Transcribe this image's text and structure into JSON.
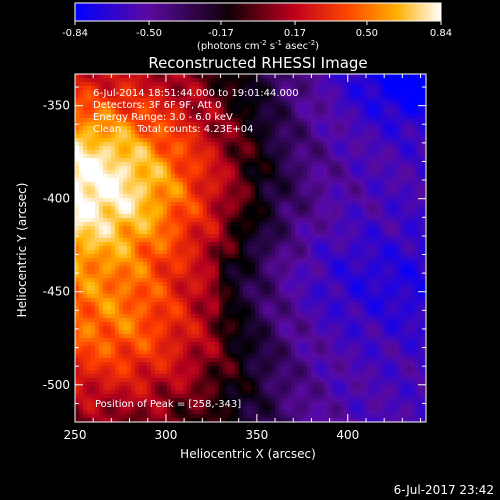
{
  "colorbar": {
    "ticks": [
      "-0.84",
      "-0.50",
      "-0.17",
      "0.17",
      "0.50",
      "0.84"
    ],
    "label_main": "(photons cm",
    "label_sup1": "-2",
    "label_mid1": " s",
    "label_sup2": "-1",
    "label_mid2": " asec",
    "label_sup3": "-2",
    "label_end": ")"
  },
  "chart_data": {
    "type": "heatmap",
    "title": "Reconstructed RHESSI Image",
    "xlabel": "Heliocentric X (arcsec)",
    "ylabel": "Heliocentric Y (arcsec)",
    "xlim": [
      250,
      443
    ],
    "ylim": [
      -520,
      -333
    ],
    "x_ticks": [
      "250",
      "300",
      "350",
      "400"
    ],
    "y_ticks": [
      "-350",
      "-400",
      "-450",
      "-500"
    ],
    "x_tick_values": [
      250,
      300,
      350,
      400
    ],
    "y_tick_values": [
      -350,
      -400,
      -450,
      -500
    ],
    "color_range": [
      -0.84,
      0.84
    ],
    "colormap": [
      "#0000ff",
      "#5a0aa0",
      "#000000",
      "#b4001e",
      "#ff3c00",
      "#ffb400",
      "#ffffff"
    ],
    "peak": [
      258,
      -343
    ],
    "annotations": [
      "6-Jul-2014 18:51:44.000 to 19:01:44.000",
      "Detectors: 3F 6F 9F, Att 0",
      "Energy Range: 3.0 - 6.0 keV",
      "Clean     Total counts: 4.23E+04"
    ],
    "peak_label": "Position of Peak = [258,-343]"
  },
  "timestamp": "6-Jul-2017 23:42"
}
